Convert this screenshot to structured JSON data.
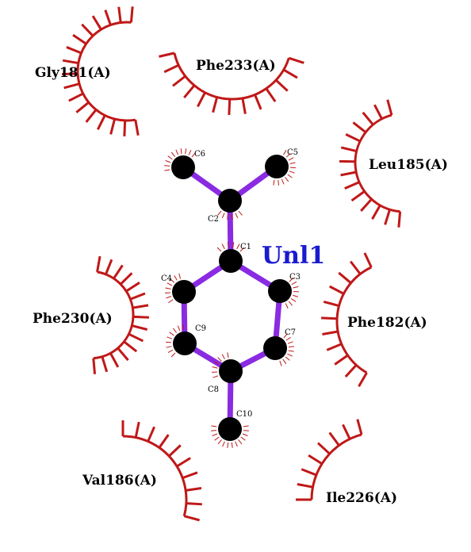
{
  "diagram_type": "ligplot",
  "colors": {
    "bond": "#8a2be2",
    "atom": "#000000",
    "hydrophobic_arc": "#c01818",
    "ligand_label": "#1a1ad0",
    "background": "#ffffff"
  },
  "ligand": {
    "name": "Unl1"
  },
  "atoms": [
    {
      "id": "C1",
      "label": "C1"
    },
    {
      "id": "C2",
      "label": "C2"
    },
    {
      "id": "C3",
      "label": "C3"
    },
    {
      "id": "C4",
      "label": "C4"
    },
    {
      "id": "C5",
      "label": "C5"
    },
    {
      "id": "C6",
      "label": "C6"
    },
    {
      "id": "C7",
      "label": "C7"
    },
    {
      "id": "C8",
      "label": "C8"
    },
    {
      "id": "C9",
      "label": "C9"
    },
    {
      "id": "C10",
      "label": "C10"
    }
  ],
  "bonds": [
    [
      "C6",
      "C2"
    ],
    [
      "C5",
      "C2"
    ],
    [
      "C2",
      "C1"
    ],
    [
      "C1",
      "C4"
    ],
    [
      "C1",
      "C3"
    ],
    [
      "C4",
      "C9"
    ],
    [
      "C3",
      "C7"
    ],
    [
      "C9",
      "C8"
    ],
    [
      "C7",
      "C8"
    ],
    [
      "C8",
      "C10"
    ]
  ],
  "residues": [
    {
      "id": "gly181",
      "label": "Gly181(A)"
    },
    {
      "id": "phe233",
      "label": "Phe233(A)"
    },
    {
      "id": "leu185",
      "label": "Leu185(A)"
    },
    {
      "id": "phe230",
      "label": "Phe230(A)"
    },
    {
      "id": "phe182",
      "label": "Phe182(A)"
    },
    {
      "id": "val186",
      "label": "Val186(A)"
    },
    {
      "id": "ile226",
      "label": "Ile226(A)"
    }
  ]
}
